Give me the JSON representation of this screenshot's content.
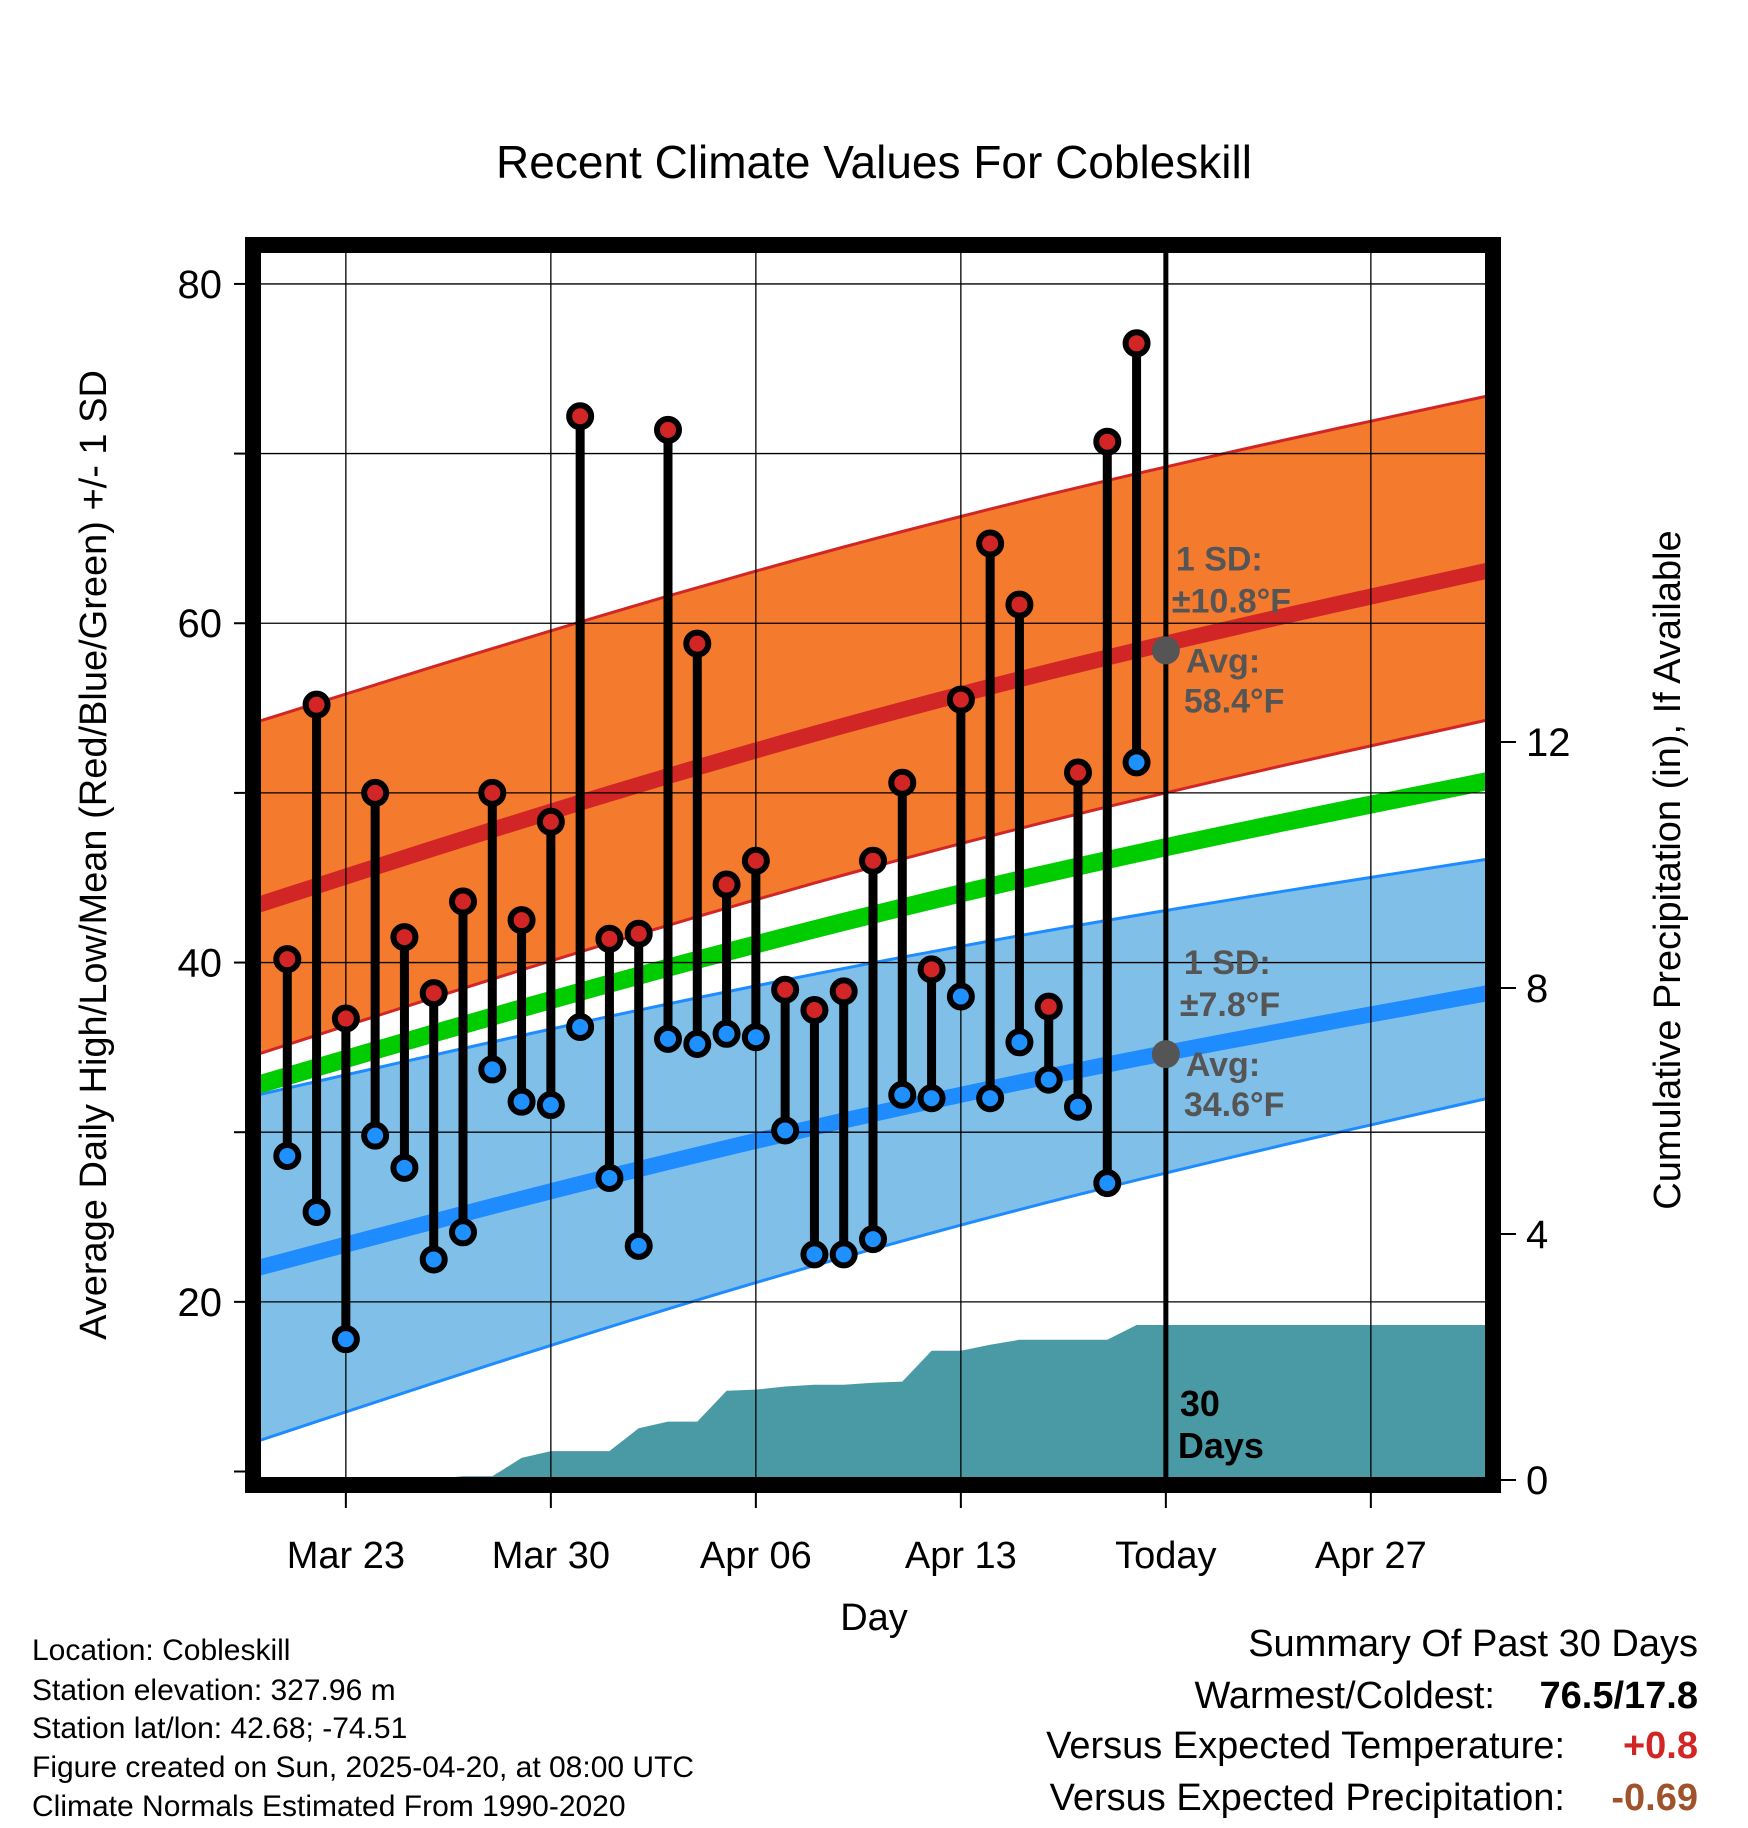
{
  "chart_data": {
    "type": "line",
    "title": "Recent Climate Values For Cobleskill",
    "xlabel": "Day",
    "ylabel_left": "Average Daily High/Low/Mean (Red/Blue/Green) +/- 1 SD",
    "ylabel_right": "Cumulative Precipitation (in), If Available",
    "x_ticks": [
      "Mar 23",
      "Mar 30",
      "Apr 06",
      "Apr 13",
      "Today",
      "Apr 27"
    ],
    "x_tick_dates": [
      "2025-03-23",
      "2025-03-30",
      "2025-04-06",
      "2025-04-13",
      "2025-04-20",
      "2025-04-27"
    ],
    "x_range": [
      "2025-03-20",
      "2025-05-01"
    ],
    "y_left_ticks": [
      "20",
      "40",
      "60",
      "80"
    ],
    "y_left_range": [
      9.5,
      82
    ],
    "y_right_ticks": [
      "0",
      "4",
      "8",
      "12"
    ],
    "y_right_range": [
      0,
      20
    ],
    "today": "2025-04-20",
    "grid": true,
    "normals": {
      "dates": [
        "2025-03-20",
        "2025-05-01"
      ],
      "high_mean": [
        43.4,
        63.1
      ],
      "high_upper": [
        54.2,
        73.4
      ],
      "high_lower": [
        34.6,
        54.3
      ],
      "mean": [
        32.8,
        50.7
      ],
      "low_mean": [
        22.0,
        38.2
      ],
      "low_upper": [
        32.2,
        46.1
      ],
      "low_lower": [
        11.8,
        32.0
      ]
    },
    "observed": {
      "dates": [
        "2025-03-21",
        "2025-03-22",
        "2025-03-23",
        "2025-03-24",
        "2025-03-25",
        "2025-03-26",
        "2025-03-27",
        "2025-03-28",
        "2025-03-29",
        "2025-03-30",
        "2025-03-31",
        "2025-04-01",
        "2025-04-02",
        "2025-04-03",
        "2025-04-04",
        "2025-04-05",
        "2025-04-06",
        "2025-04-07",
        "2025-04-08",
        "2025-04-09",
        "2025-04-10",
        "2025-04-11",
        "2025-04-12",
        "2025-04-13",
        "2025-04-14",
        "2025-04-15",
        "2025-04-16",
        "2025-04-17",
        "2025-04-18",
        "2025-04-19"
      ],
      "high": [
        40.2,
        55.2,
        36.7,
        50.0,
        41.5,
        38.2,
        43.6,
        50.0,
        42.5,
        48.3,
        72.2,
        41.4,
        41.7,
        71.4,
        58.8,
        44.6,
        46.0,
        38.4,
        37.2,
        38.3,
        46.0,
        50.6,
        39.6,
        55.5,
        64.7,
        61.1,
        37.4,
        51.2,
        70.7,
        76.5
      ],
      "low": [
        28.6,
        25.3,
        17.8,
        29.8,
        27.9,
        22.5,
        24.1,
        33.7,
        31.8,
        31.6,
        36.2,
        27.3,
        23.3,
        35.5,
        35.2,
        35.8,
        35.6,
        30.1,
        22.8,
        22.8,
        23.7,
        32.2,
        32.0,
        38.0,
        32.0,
        35.3,
        33.1,
        31.5,
        27.0,
        51.8
      ]
    },
    "precip_cumulative": {
      "dates": [
        "2025-03-20",
        "2025-03-22",
        "2025-03-23",
        "2025-03-24",
        "2025-03-25",
        "2025-03-26",
        "2025-03-27",
        "2025-03-28",
        "2025-03-29",
        "2025-03-30",
        "2025-03-31",
        "2025-04-01",
        "2025-04-02",
        "2025-04-03",
        "2025-04-04",
        "2025-04-05",
        "2025-04-06",
        "2025-04-07",
        "2025-04-08",
        "2025-04-09",
        "2025-04-10",
        "2025-04-11",
        "2025-04-12",
        "2025-04-13",
        "2025-04-14",
        "2025-04-15",
        "2025-04-16",
        "2025-04-17",
        "2025-04-18",
        "2025-04-19",
        "2025-05-01"
      ],
      "values": [
        0,
        0,
        0,
        0,
        0,
        0.02,
        0.06,
        0.06,
        0.36,
        0.47,
        0.47,
        0.47,
        0.84,
        0.95,
        0.95,
        1.45,
        1.47,
        1.52,
        1.55,
        1.55,
        1.58,
        1.6,
        2.1,
        2.1,
        2.2,
        2.28,
        2.28,
        2.28,
        2.28,
        2.52,
        2.52
      ]
    },
    "annotations": {
      "high_sd": "1 SD:",
      "high_sd_value": "±10.8°F",
      "high_avg": "Avg:",
      "high_avg_value": "58.4°F",
      "high_avg_level": 58.4,
      "low_sd": "1 SD:",
      "low_sd_value": "±7.8°F",
      "low_avg": "Avg:",
      "low_avg_value": "34.6°F",
      "low_avg_level": 34.6,
      "days_count": "30",
      "days_label": "Days"
    },
    "colors": {
      "high_band": "#f47a2e",
      "high_line": "#d22626",
      "mean_line": "#00cc00",
      "low_band": "#80c0e8",
      "low_line": "#1e8cff",
      "precip": "#4a9aa5",
      "annotation": "#555555",
      "high_marker": "#d22626",
      "low_marker": "#1e90ff"
    }
  },
  "info": {
    "location": "Location: Cobleskill",
    "elevation": "Station elevation: 327.96 m",
    "latlon": "Station lat/lon: 42.68; -74.51",
    "created": "Figure created on Sun, 2025-04-20, at 08:00 UTC",
    "normals": "Climate Normals Estimated From 1990-2020"
  },
  "summary": {
    "title": "Summary Of Past 30 Days",
    "warm_cold_label": "Warmest/Coldest:",
    "warm_cold_value": "76.5/17.8",
    "temp_label": "Versus Expected Temperature:",
    "temp_value": "+0.8",
    "temp_color": "#d22626",
    "precip_label": "Versus Expected Precipitation:",
    "precip_value": "-0.69",
    "precip_color": "#a0522d"
  }
}
